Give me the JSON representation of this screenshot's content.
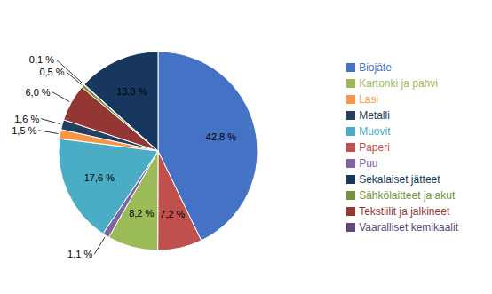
{
  "chart_data": {
    "type": "pie",
    "categories": [
      "Biojäte",
      "Paperi",
      "Kartonki ja pahvi",
      "Puu",
      "Muovit",
      "Lasi",
      "Metalli",
      "Tekstiilit ja jalkineet",
      "Sähkölaitteet ja akut",
      "Vaaralliset kemikaalit",
      "Sekalaiset jätteet"
    ],
    "values": [
      42.8,
      7.2,
      8.2,
      1.1,
      17.6,
      1.5,
      1.6,
      6.0,
      0.5,
      0.1,
      13.3
    ],
    "value_labels": [
      "42,8 %",
      "7,2 %",
      "8,2 %",
      "1,1 %",
      "17,6 %",
      "1,5 %",
      "1,6 %",
      "6,0 %",
      "0,5 %",
      "0,1 %",
      "13,3 %"
    ],
    "colors": [
      "#4472C4",
      "#C0504D",
      "#9BBB59",
      "#8064A2",
      "#4BACC6",
      "#F79646",
      "#243F60",
      "#943634",
      "#76923C",
      "#60497A",
      "#17375E"
    ],
    "data_labels": true,
    "legend": "right"
  }
}
